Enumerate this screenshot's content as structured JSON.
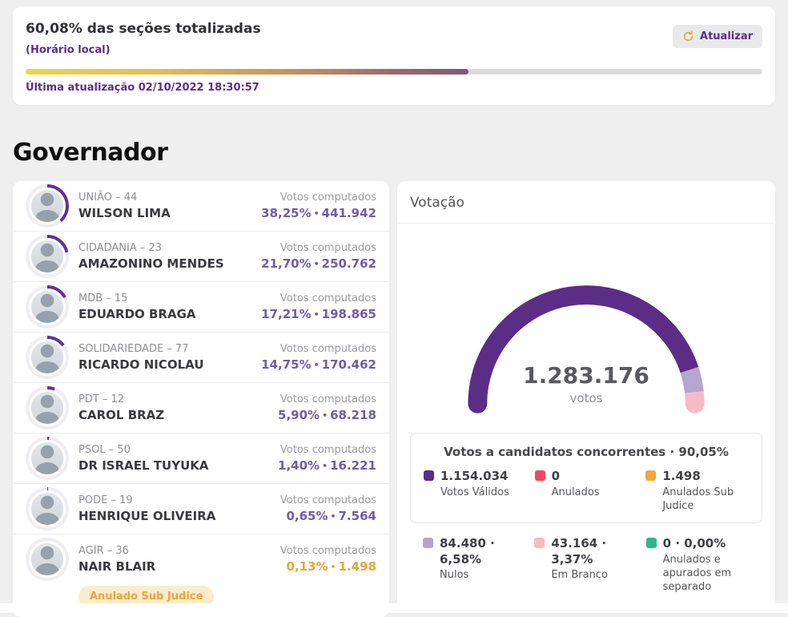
{
  "summary": {
    "title": "60,08% das seções totalizadas",
    "subtitle": "(Horário local)",
    "progress_pct": 60.08,
    "last_update": "Última atualização 02/10/2022 18:30:57",
    "refresh_label": "Atualizar"
  },
  "page": {
    "section_title": "Governador"
  },
  "labels": {
    "votes_computed": "Votos computados",
    "bullet": "•"
  },
  "candidates": [
    {
      "party": "UNIÃO – 44",
      "name": "WILSON LIMA",
      "pct": "38,25%",
      "votes": "441.942",
      "pct_value": 38.25,
      "highlight": "purple"
    },
    {
      "party": "CIDADANIA – 23",
      "name": "AMAZONINO MENDES",
      "pct": "21,70%",
      "votes": "250.762",
      "pct_value": 21.7,
      "highlight": "purple"
    },
    {
      "party": "MDB – 15",
      "name": "EDUARDO BRAGA",
      "pct": "17,21%",
      "votes": "198.865",
      "pct_value": 17.21,
      "highlight": "purple"
    },
    {
      "party": "SOLIDARIEDADE – 77",
      "name": "RICARDO NICOLAU",
      "pct": "14,75%",
      "votes": "170.462",
      "pct_value": 14.75,
      "highlight": "purple"
    },
    {
      "party": "PDT – 12",
      "name": "CAROL BRAZ",
      "pct": "5,90%",
      "votes": "68.218",
      "pct_value": 5.9,
      "highlight": "purple"
    },
    {
      "party": "PSOL – 50",
      "name": "DR ISRAEL TUYUKA",
      "pct": "1,40%",
      "votes": "16.221",
      "pct_value": 1.4,
      "highlight": "purple"
    },
    {
      "party": "PODE – 19",
      "name": "HENRIQUE OLIVEIRA",
      "pct": "0,65%",
      "votes": "7.564",
      "pct_value": 0.65,
      "highlight": "purple"
    },
    {
      "party": "AGIR – 36",
      "name": "NAIR BLAIR",
      "pct": "0,13%",
      "votes": "1.498",
      "pct_value": 0.13,
      "highlight": "orange",
      "badge": "Anulado Sub Judice"
    }
  ],
  "votacao": {
    "title": "Votação",
    "total": "1.283.176",
    "total_label": "votos",
    "box_title": "Votos a candidatos concorrentes · 90,05%",
    "legend_top": [
      {
        "value": "1.154.034",
        "label": "Votos Válidos",
        "color": "#5b2d87"
      },
      {
        "value": "0",
        "label": "Anulados",
        "color": "#f4485f"
      },
      {
        "value": "1.498",
        "label": "Anulados Sub Judice",
        "color": "#f2a73d"
      }
    ],
    "legend_bottom": [
      {
        "value": "84.480 · 6,58%",
        "label": "Nulos",
        "color": "#b3a2ce"
      },
      {
        "value": "43.164 · 3,37%",
        "label": "Em Branco",
        "color": "#f7b9c4"
      },
      {
        "value": "0 · 0,00%",
        "label": "Anulados e apurados em separado",
        "color": "#2fb58c"
      }
    ]
  },
  "chart_data": {
    "type": "gauge",
    "title": "Votação",
    "center_label": "1.283.176 votos",
    "total_value": 1283176,
    "legend_position": "bottom",
    "series": [
      {
        "name": "Votos Válidos",
        "value": 1154034,
        "pct": 89.94,
        "color": "#5b2d87"
      },
      {
        "name": "Anulados",
        "value": 0,
        "pct": 0,
        "color": "#f4485f"
      },
      {
        "name": "Anulados Sub Judice",
        "value": 1498,
        "pct": 0.12,
        "color": "#f2a73d"
      },
      {
        "name": "Nulos",
        "value": 84480,
        "pct": 6.58,
        "color": "#b6a4d1"
      },
      {
        "name": "Em Branco",
        "value": 43164,
        "pct": 3.36,
        "color": "#f7bac6"
      },
      {
        "name": "Anulados e apurados em separado",
        "value": 0,
        "pct": 0,
        "color": "#2fb58c"
      }
    ]
  },
  "theme": {
    "--brand-purple": "#5c2d87",
    "--value-purple": "#6f5ca6",
    "--accent-orange": "#e9a43c",
    "--badge-bg": "#fdeccb",
    "--page-bg": "#efeff0",
    "--ring-fill": "#5f3391",
    "--ring-track": "#efedf3",
    "--progress-track": "#dcdcde"
  }
}
